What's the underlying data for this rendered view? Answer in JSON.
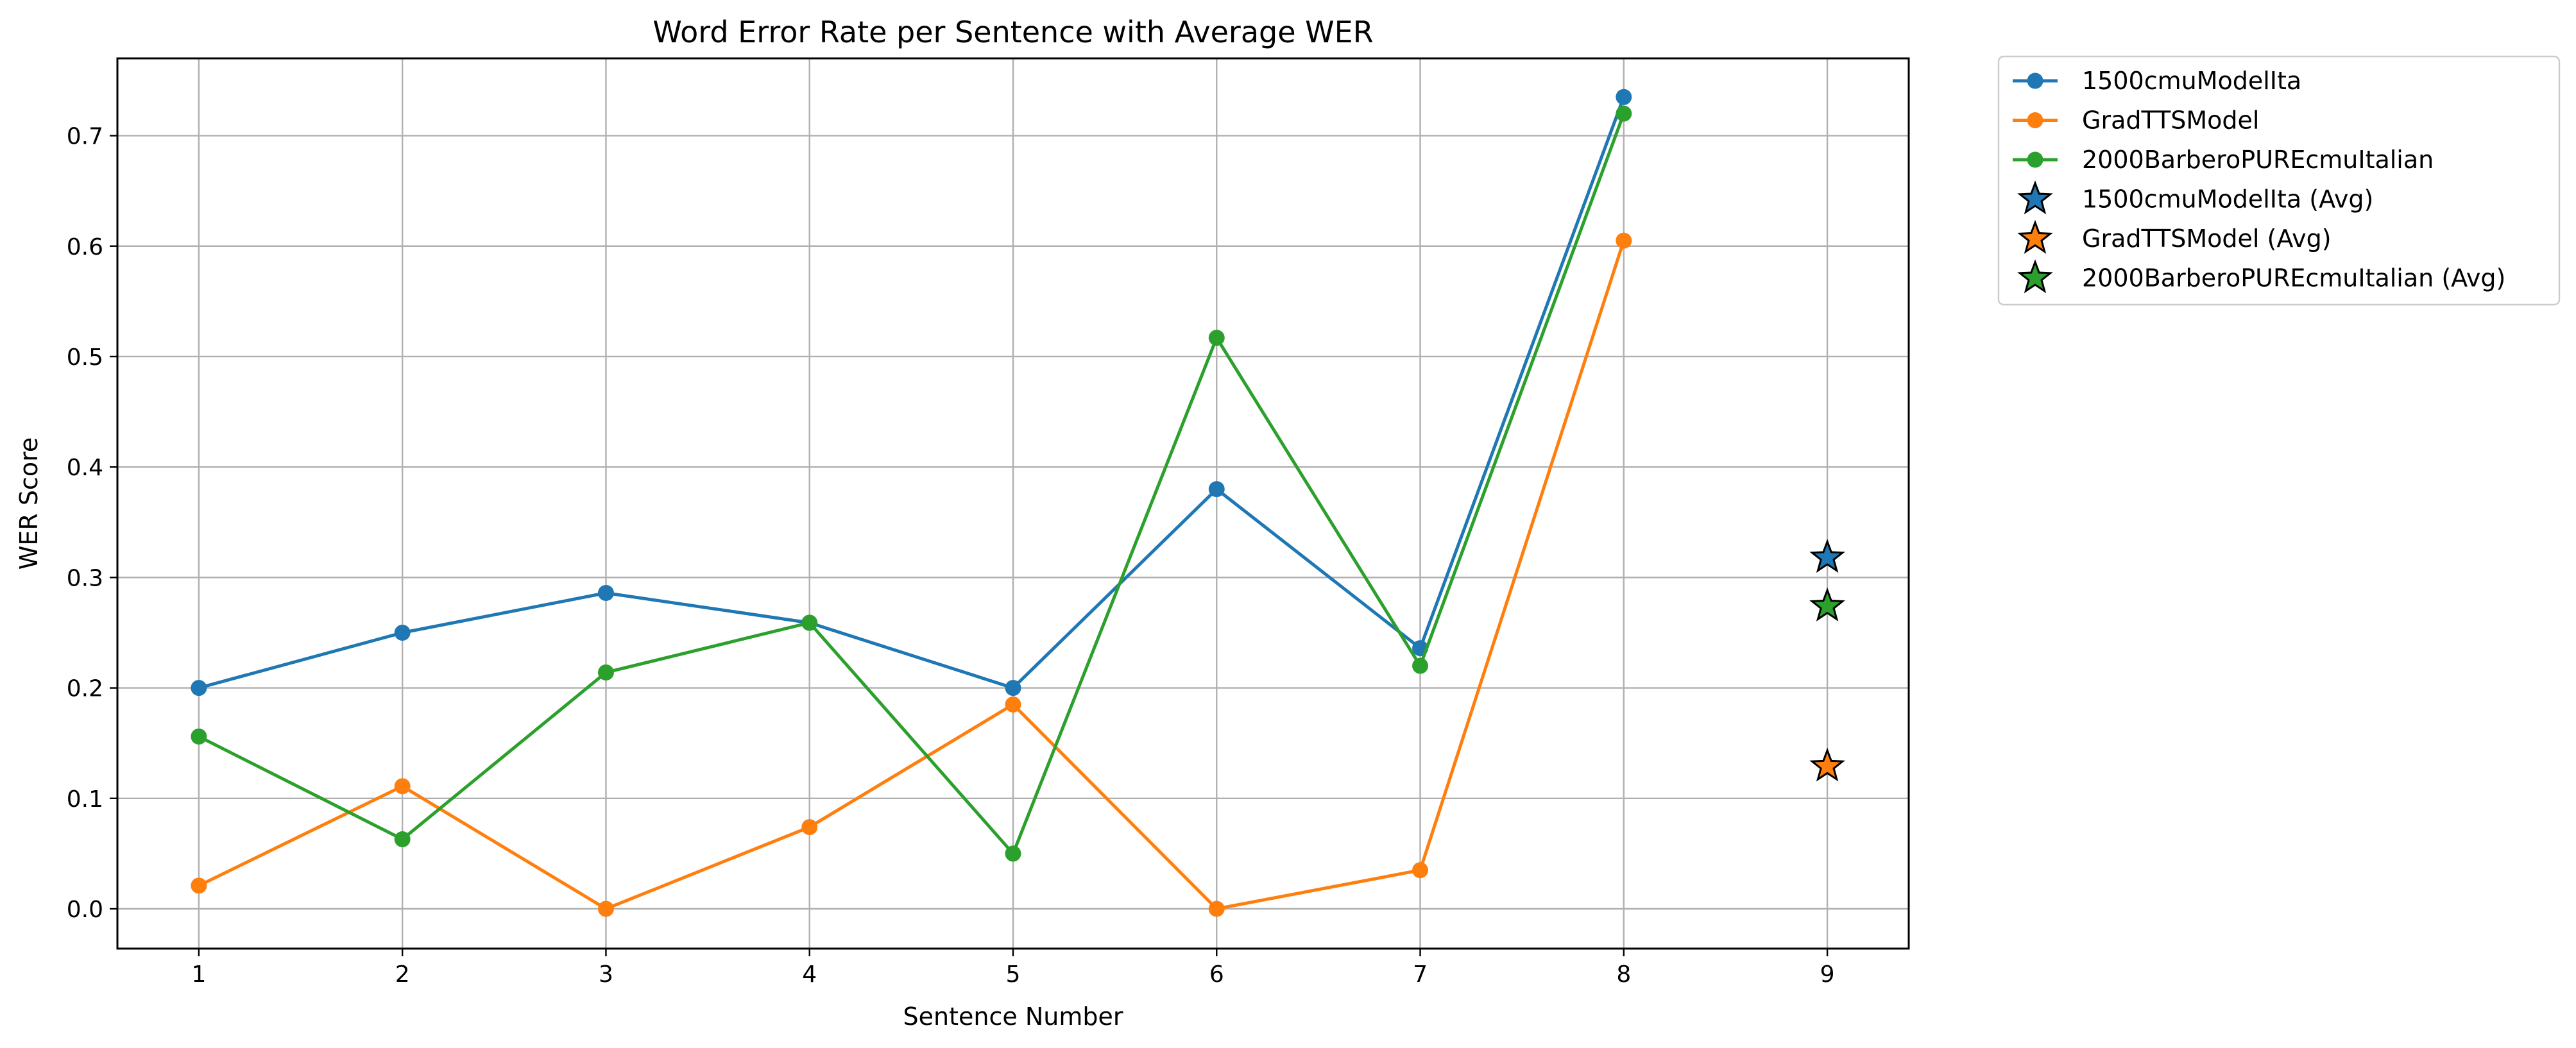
{
  "chart_data": {
    "type": "line",
    "title": "Word Error Rate per Sentence with Average WER",
    "xlabel": "Sentence Number",
    "ylabel": "WER Score",
    "xlim": [
      0.6,
      9.4
    ],
    "ylim": [
      -0.036,
      0.77
    ],
    "xticks": [
      "1",
      "2",
      "3",
      "4",
      "5",
      "6",
      "7",
      "8",
      "9"
    ],
    "yticks": [
      "0.0",
      "0.1",
      "0.2",
      "0.3",
      "0.4",
      "0.5",
      "0.6",
      "0.7"
    ],
    "grid": true,
    "legend_position": "outside-top-right",
    "x": [
      1,
      2,
      3,
      4,
      5,
      6,
      7,
      8
    ],
    "series": [
      {
        "name": "1500cmuModelIta",
        "color": "#1f77b4",
        "marker": "circle",
        "values": [
          0.2,
          0.25,
          0.286,
          0.259,
          0.2,
          0.38,
          0.236,
          0.735
        ]
      },
      {
        "name": "GradTTSModel",
        "color": "#ff7f0e",
        "marker": "circle",
        "values": [
          0.021,
          0.111,
          0.0,
          0.074,
          0.185,
          0.0,
          0.035,
          0.605
        ]
      },
      {
        "name": "2000BarberoPUREcmuItalian",
        "color": "#2ca02c",
        "marker": "circle",
        "values": [
          0.156,
          0.063,
          0.214,
          0.259,
          0.05,
          0.517,
          0.22,
          0.72
        ]
      }
    ],
    "averages": [
      {
        "name": "1500cmuModelIta (Avg)",
        "color": "#1f77b4",
        "marker": "star",
        "x": 9,
        "value": 0.318
      },
      {
        "name": "GradTTSModel (Avg)",
        "color": "#ff7f0e",
        "marker": "star",
        "x": 9,
        "value": 0.129
      },
      {
        "name": "2000BarberoPUREcmuItalian (Avg)",
        "color": "#2ca02c",
        "marker": "star",
        "x": 9,
        "value": 0.274
      }
    ]
  }
}
